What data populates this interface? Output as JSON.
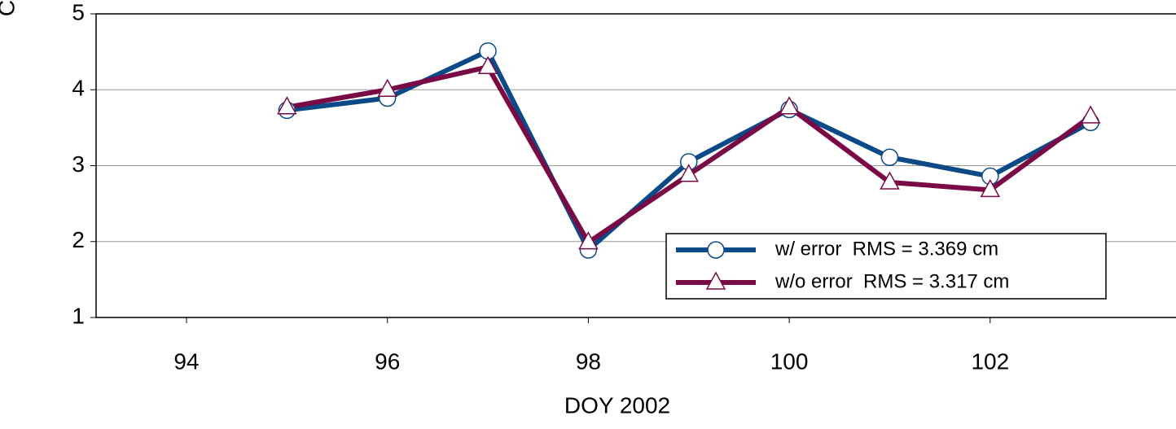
{
  "chart_data": {
    "type": "line",
    "ylabel": "C",
    "xlabel": "DOY 2002",
    "x": [
      95,
      96,
      97,
      98,
      99,
      100,
      101,
      102,
      103
    ],
    "series": [
      {
        "name": "w/ error  RMS = 3.369 cm",
        "color": "#0b4a86",
        "marker": "circle",
        "values": [
          3.73,
          3.89,
          4.51,
          1.89,
          3.05,
          3.74,
          3.11,
          2.86,
          3.57
        ]
      },
      {
        "name": "w/o error  RMS = 3.317 cm",
        "color": "#7a0a45",
        "marker": "triangle",
        "values": [
          3.77,
          4.0,
          4.3,
          1.99,
          2.88,
          3.77,
          2.78,
          2.68,
          3.65
        ]
      }
    ],
    "xlim": [
      93.1,
      103.85
    ],
    "xticks": [
      94,
      96,
      98,
      100,
      102
    ],
    "ylim": [
      1,
      5
    ],
    "yticks": [
      1,
      2,
      3,
      4,
      5
    ],
    "grid": true,
    "legend": "lower right"
  }
}
